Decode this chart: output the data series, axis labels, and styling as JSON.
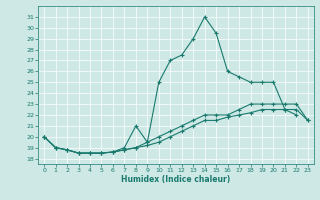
{
  "xlabel": "Humidex (Indice chaleur)",
  "bg_color": "#cde8e5",
  "grid_color": "#ffffff",
  "line_color": "#1a7a6e",
  "xlim": [
    -0.5,
    23.5
  ],
  "ylim": [
    17.5,
    32
  ],
  "yticks": [
    18,
    19,
    20,
    21,
    22,
    23,
    24,
    25,
    26,
    27,
    28,
    29,
    30,
    31
  ],
  "xticks": [
    0,
    1,
    2,
    3,
    4,
    5,
    6,
    7,
    8,
    9,
    10,
    11,
    12,
    13,
    14,
    15,
    16,
    17,
    18,
    19,
    20,
    21,
    22,
    23
  ],
  "series": [
    [
      20,
      19,
      18.8,
      18.5,
      18.5,
      18.5,
      18.6,
      19.0,
      21.0,
      19.5,
      25.0,
      27.0,
      27.5,
      29.0,
      31.0,
      29.5,
      26.0,
      25.5,
      25.0,
      25.0,
      25.0,
      22.5,
      22.0,
      null
    ],
    [
      20,
      19,
      18.8,
      18.5,
      18.5,
      18.5,
      18.6,
      18.8,
      19.0,
      19.5,
      20.0,
      20.5,
      21.0,
      21.5,
      22.0,
      22.0,
      22.0,
      22.5,
      23.0,
      23.0,
      23.0,
      23.0,
      23.0,
      21.5
    ],
    [
      20,
      19,
      18.8,
      18.5,
      18.5,
      18.5,
      18.6,
      18.8,
      19.0,
      19.2,
      19.5,
      20.0,
      20.5,
      21.0,
      21.5,
      21.5,
      21.8,
      22.0,
      22.2,
      22.5,
      22.5,
      22.5,
      22.5,
      21.5
    ]
  ]
}
